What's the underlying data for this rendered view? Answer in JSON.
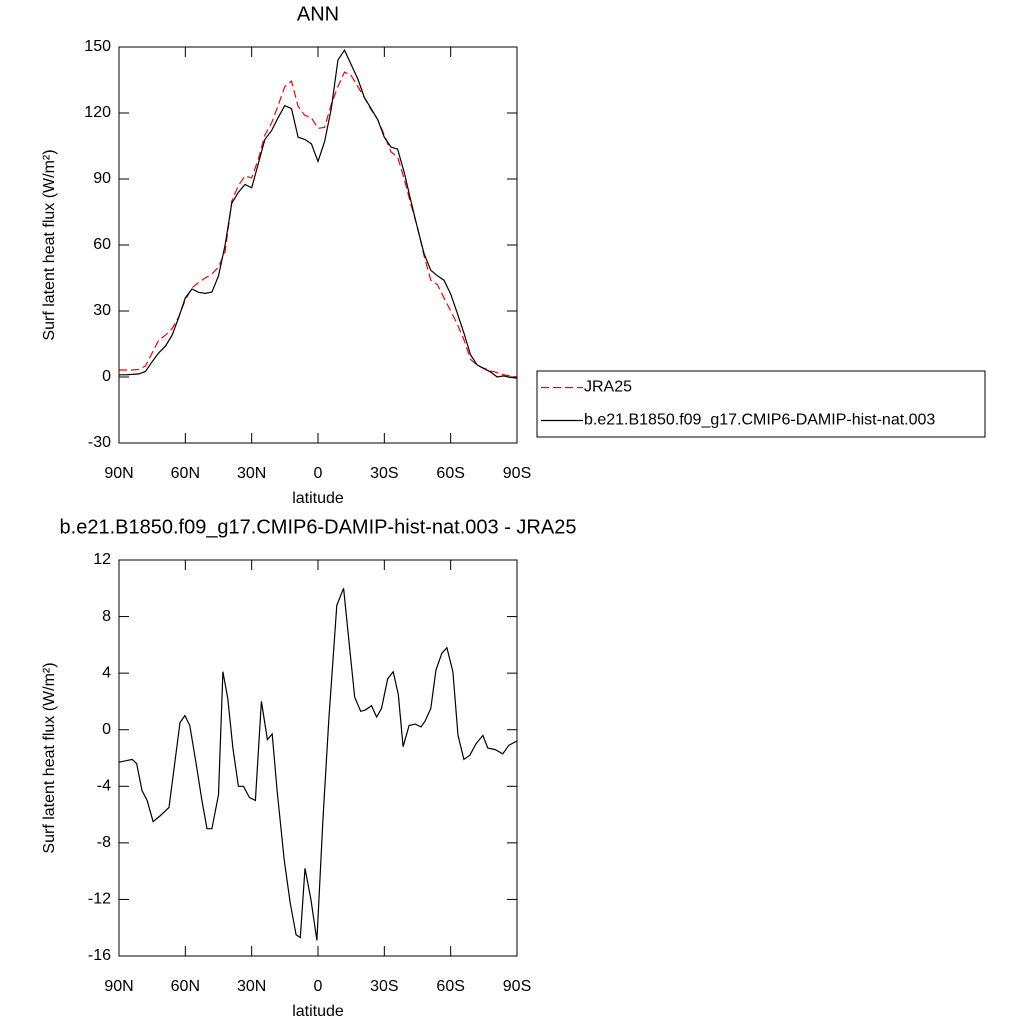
{
  "chart_data": [
    {
      "type": "line",
      "title": "ANN",
      "xlabel": "latitude",
      "ylabel": "Surf latent heat flux (W/m²)",
      "x": [
        90,
        87,
        84,
        81,
        78,
        75,
        72,
        69,
        66,
        63,
        60,
        57,
        54,
        51,
        48,
        45,
        42,
        39,
        36,
        33,
        30,
        27,
        24,
        21,
        18,
        15,
        12,
        9,
        6,
        3,
        0,
        -3,
        -6,
        -9,
        -12,
        -15,
        -18,
        -21,
        -24,
        -27,
        -30,
        -33,
        -36,
        -39,
        -42,
        -45,
        -48,
        -51,
        -54,
        -57,
        -60,
        -63,
        -66,
        -69,
        -72,
        -75,
        -78,
        -81,
        -84,
        -87,
        -90
      ],
      "series": [
        {
          "name": "JRA25",
          "color": "#ff0000",
          "line_style": "dashed",
          "values": [
            3.2,
            3.2,
            3.2,
            3.5,
            5,
            11,
            16.8,
            19,
            22,
            27.3,
            35,
            40.5,
            43,
            45,
            46.8,
            50,
            57,
            80,
            87,
            91.4,
            90.5,
            99,
            110,
            115.5,
            123.5,
            132,
            134.5,
            123,
            119,
            117.8,
            113,
            113.5,
            124,
            132,
            138.6,
            137,
            132,
            127,
            121.5,
            117,
            110,
            102.3,
            100,
            90,
            78.5,
            68,
            55,
            44,
            42,
            36,
            30,
            24,
            17,
            8,
            5.3,
            4,
            2.8,
            2,
            1,
            0.5,
            0
          ]
        },
        {
          "name": "b.e21.B1850.f09_g17.CMIP6-DAMIP-hist-nat.003",
          "color": "#000000",
          "line_style": "solid",
          "values": [
            1,
            1,
            1.2,
            1.4,
            2.5,
            7,
            11,
            14,
            19,
            27,
            36,
            40,
            38.5,
            38,
            38.6,
            46,
            60,
            79,
            84,
            87.5,
            86,
            97,
            108,
            112,
            118,
            123.3,
            122,
            109,
            108,
            106,
            98,
            107,
            122,
            144,
            148.6,
            142,
            135.5,
            127,
            122,
            117,
            109,
            104.5,
            103.6,
            93,
            80,
            67.7,
            56,
            48.5,
            46,
            44,
            37.7,
            29,
            20,
            10,
            5.5,
            3.8,
            2.3,
            0,
            0.5,
            -0.2,
            -0.5
          ]
        }
      ],
      "xlim": [
        90,
        -90
      ],
      "xticks": [
        {
          "value": 90,
          "label": "90N"
        },
        {
          "value": 60,
          "label": "60N"
        },
        {
          "value": 30,
          "label": "30N"
        },
        0,
        {
          "value": -30,
          "label": "30S"
        },
        {
          "value": -60,
          "label": "60S"
        },
        {
          "value": -90,
          "label": "90S"
        }
      ],
      "ylim": [
        -30,
        150
      ],
      "yticks": [
        -30,
        0,
        30,
        60,
        90,
        120,
        150
      ],
      "legend": "right"
    },
    {
      "type": "line",
      "title": "b.e21.B1850.f09_g17.CMIP6-DAMIP-hist-nat.003 - JRA25",
      "xlabel": "latitude",
      "ylabel": "Surf latent heat flux (W/m²)",
      "x": [
        90,
        84,
        82,
        79.6,
        77.3,
        74.6,
        71.5,
        67.4,
        62.4,
        60.2,
        58,
        55.2,
        52.5,
        50.2,
        48,
        45,
        43,
        40.8,
        38.5,
        36,
        33.7,
        31,
        28.3,
        25.6,
        22.9,
        20.7,
        18.5,
        15.3,
        12.6,
        9.9,
        8,
        5.9,
        3.2,
        0.5,
        -2.2,
        -4.9,
        -8.5,
        -11.6,
        -14.3,
        -16.6,
        -19.3,
        -21.5,
        -24.2,
        -26.5,
        -28.7,
        -31.5,
        -34,
        -36.3,
        -38.5,
        -41.2,
        -44,
        -46.6,
        -48.4,
        -51,
        -53.3,
        -56,
        -58.3,
        -61,
        -63.3,
        -66,
        -68.7,
        -71.4,
        -74.6,
        -76.8,
        -80,
        -83.6,
        -86.3,
        -90
      ],
      "color": "#000000",
      "values": [
        -2.3,
        -2.1,
        -2.4,
        -4.3,
        -5,
        -6.5,
        -6.1,
        -5.5,
        0.5,
        1,
        0.3,
        -2.3,
        -5,
        -7,
        -7,
        -4.6,
        4.1,
        2.2,
        -1.3,
        -4,
        -4,
        -4.8,
        -5,
        2,
        -0.7,
        -0.3,
        -4.3,
        -9.2,
        -12.2,
        -14.5,
        -14.7,
        -9.8,
        -12,
        -14.9,
        -6.4,
        0.7,
        8.8,
        10,
        5.8,
        2.3,
        1.3,
        1.4,
        1.7,
        0.9,
        1.5,
        3.6,
        4.1,
        2.5,
        -1.2,
        0.3,
        0.4,
        0.2,
        0.6,
        1.5,
        4.2,
        5.4,
        5.8,
        4.1,
        -0.4,
        -2.1,
        -1.8,
        -1,
        -0.4,
        -1.3,
        -1.4,
        -1.7,
        -1.1,
        -0.8
      ],
      "xlim": [
        90,
        -90
      ],
      "xticks": [
        {
          "value": 90,
          "label": "90N"
        },
        {
          "value": 60,
          "label": "60N"
        },
        {
          "value": 30,
          "label": "30N"
        },
        0,
        {
          "value": -30,
          "label": "30S"
        },
        {
          "value": -60,
          "label": "60S"
        },
        {
          "value": -90,
          "label": "90S"
        }
      ],
      "ylim": [
        -16,
        12
      ],
      "yticks": [
        -16,
        -12,
        -8,
        -4,
        0,
        4,
        8,
        12
      ]
    }
  ]
}
